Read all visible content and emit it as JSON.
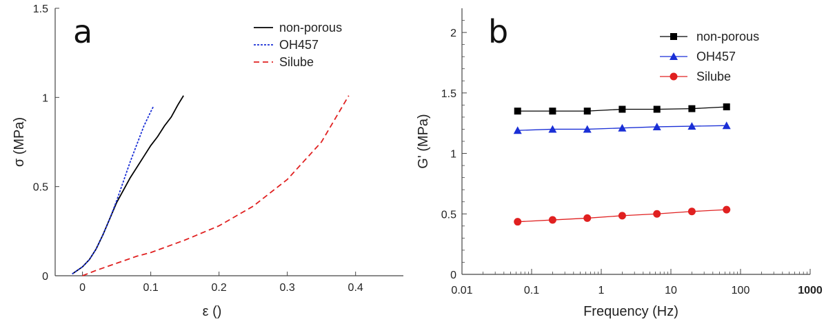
{
  "chart_data": [
    {
      "panel_label": "a",
      "type": "line",
      "xlabel": "ε ()",
      "ylabel": "σ (MPa)",
      "xlim": [
        -0.04,
        0.47
      ],
      "ylim": [
        0,
        1.5
      ],
      "x_ticks": [
        0,
        0.1,
        0.2,
        0.3,
        0.4
      ],
      "x_tick_labels": [
        "0",
        "0.1",
        "0.2",
        "0.3",
        "0.4"
      ],
      "y_ticks": [
        0,
        0.5,
        1,
        1.5
      ],
      "y_tick_labels": [
        "0",
        "0.5",
        "1",
        "1.5"
      ],
      "legend_position": "top-right",
      "series": [
        {
          "name": "non-porous",
          "color": "#000000",
          "dash": "solid",
          "x": [
            -0.015,
            0,
            0.01,
            0.02,
            0.03,
            0.04,
            0.05,
            0.06,
            0.07,
            0.08,
            0.09,
            0.1,
            0.11,
            0.12,
            0.13,
            0.14,
            0.148
          ],
          "y": [
            0.01,
            0.05,
            0.09,
            0.15,
            0.23,
            0.32,
            0.41,
            0.48,
            0.55,
            0.61,
            0.67,
            0.73,
            0.78,
            0.84,
            0.89,
            0.96,
            1.01
          ]
        },
        {
          "name": "OH457",
          "color": "#1a2fd6",
          "dash": "dotted",
          "x": [
            -0.015,
            0,
            0.01,
            0.02,
            0.03,
            0.04,
            0.05,
            0.06,
            0.07,
            0.08,
            0.09,
            0.1,
            0.104
          ],
          "y": [
            0.01,
            0.05,
            0.09,
            0.15,
            0.23,
            0.32,
            0.42,
            0.53,
            0.64,
            0.74,
            0.84,
            0.92,
            0.95
          ]
        },
        {
          "name": "Silube",
          "color": "#e02020",
          "dash": "dashed",
          "x": [
            0,
            0.02,
            0.05,
            0.08,
            0.1,
            0.15,
            0.2,
            0.25,
            0.3,
            0.35,
            0.39
          ],
          "y": [
            0.0,
            0.03,
            0.07,
            0.11,
            0.13,
            0.2,
            0.28,
            0.39,
            0.54,
            0.75,
            1.01
          ]
        }
      ]
    },
    {
      "panel_label": "b",
      "type": "line",
      "xlabel": "Frequency (Hz)",
      "ylabel": "G' (MPa)",
      "xscale": "log",
      "xlim": [
        0.01,
        1000
      ],
      "ylim": [
        0,
        2.2
      ],
      "x_ticks": [
        0.01,
        0.1,
        1,
        10,
        100,
        1000
      ],
      "x_tick_labels": [
        "0.01",
        "0.1",
        "1",
        "10",
        "100",
        "1000"
      ],
      "y_ticks": [
        0,
        0.5,
        1,
        1.5,
        2
      ],
      "y_tick_labels": [
        "0",
        "0.5",
        "1",
        "1.5",
        "2"
      ],
      "legend_position": "top-right",
      "x": [
        0.063,
        0.2,
        0.63,
        2,
        6.3,
        20,
        63
      ],
      "series": [
        {
          "name": "non-porous",
          "color": "#000000",
          "marker": "square",
          "values": [
            1.35,
            1.35,
            1.35,
            1.365,
            1.365,
            1.37,
            1.385
          ]
        },
        {
          "name": "OH457",
          "color": "#1a2fd6",
          "marker": "triangle",
          "values": [
            1.19,
            1.2,
            1.2,
            1.21,
            1.22,
            1.225,
            1.23
          ]
        },
        {
          "name": "Silube",
          "color": "#e02020",
          "marker": "circle",
          "values": [
            0.435,
            0.45,
            0.465,
            0.485,
            0.5,
            0.52,
            0.535
          ]
        }
      ]
    }
  ]
}
